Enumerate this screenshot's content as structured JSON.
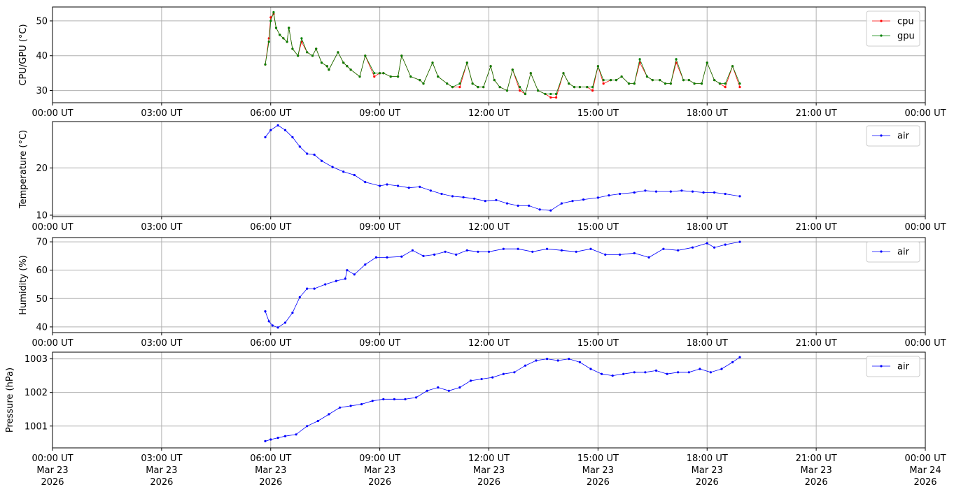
{
  "x_ticks": {
    "times": [
      "00:00 UT",
      "03:00 UT",
      "06:00 UT",
      "09:00 UT",
      "12:00 UT",
      "15:00 UT",
      "18:00 UT",
      "21:00 UT",
      "00:00 UT"
    ],
    "dates": [
      "Mar 23",
      "Mar 23",
      "Mar 23",
      "Mar 23",
      "Mar 23",
      "Mar 23",
      "Mar 23",
      "Mar 23",
      "Mar 24"
    ],
    "years": [
      "2026",
      "2026",
      "2026",
      "2026",
      "2026",
      "2026",
      "2026",
      "2026",
      "2026"
    ]
  },
  "chart_data": [
    {
      "type": "line",
      "ylabel": "CPU/GPU (°C)",
      "xlim_hours": [
        0,
        24
      ],
      "ylim": [
        26.5,
        54
      ],
      "yticks": [
        30,
        40,
        50
      ],
      "grid": true,
      "legend": "top-right",
      "colors": {
        "cpu": "#ff0000",
        "gpu": "#008000"
      },
      "series": [
        {
          "name": "cpu",
          "x_hours": [
            5.85,
            5.95,
            6.0,
            6.08,
            6.15,
            6.25,
            6.35,
            6.45,
            6.5,
            6.6,
            6.75,
            6.85,
            7.0,
            7.15,
            7.25,
            7.4,
            7.55,
            7.6,
            7.85,
            8.0,
            8.1,
            8.2,
            8.45,
            8.6,
            8.85,
            9.0,
            9.1,
            9.3,
            9.5,
            9.6,
            9.85,
            10.1,
            10.2,
            10.45,
            10.6,
            10.85,
            11.0,
            11.2,
            11.4,
            11.55,
            11.7,
            11.85,
            12.05,
            12.15,
            12.3,
            12.5,
            12.65,
            12.85,
            13.0,
            13.15,
            13.35,
            13.55,
            13.7,
            13.85,
            14.05,
            14.2,
            14.35,
            14.5,
            14.7,
            14.85,
            15.0,
            15.15,
            15.35,
            15.5,
            15.65,
            15.85,
            16.0,
            16.15,
            16.35,
            16.5,
            16.7,
            16.85,
            17.0,
            17.15,
            17.35,
            17.5,
            17.65,
            17.85,
            18.0,
            18.2,
            18.35,
            18.5,
            18.7,
            18.9
          ],
          "y": [
            37.5,
            45,
            51,
            52,
            48,
            46,
            45,
            44,
            48,
            42,
            40,
            44,
            41,
            40,
            42,
            38,
            37,
            36,
            41,
            38,
            37,
            36,
            34,
            40,
            34,
            35,
            35,
            34,
            34,
            40,
            34,
            33,
            32,
            38,
            34,
            32,
            31,
            31,
            38,
            32,
            31,
            31,
            37,
            33,
            31,
            30,
            36,
            30,
            29,
            35,
            30,
            29,
            28,
            28,
            35,
            32,
            31,
            31,
            31,
            30,
            37,
            32,
            33,
            33,
            34,
            32,
            32,
            38,
            34,
            33,
            33,
            32,
            32,
            38,
            33,
            33,
            32,
            32,
            38,
            33,
            32,
            31,
            37,
            31
          ]
        },
        {
          "name": "gpu",
          "x_hours": [
            5.85,
            5.95,
            6.0,
            6.08,
            6.15,
            6.25,
            6.35,
            6.45,
            6.5,
            6.6,
            6.75,
            6.85,
            7.0,
            7.15,
            7.25,
            7.4,
            7.55,
            7.6,
            7.85,
            8.0,
            8.1,
            8.2,
            8.45,
            8.6,
            8.85,
            9.0,
            9.1,
            9.3,
            9.5,
            9.6,
            9.85,
            10.1,
            10.2,
            10.45,
            10.6,
            10.85,
            11.0,
            11.2,
            11.4,
            11.55,
            11.7,
            11.85,
            12.05,
            12.15,
            12.3,
            12.5,
            12.65,
            12.85,
            13.0,
            13.15,
            13.35,
            13.55,
            13.7,
            13.85,
            14.05,
            14.2,
            14.35,
            14.5,
            14.7,
            14.85,
            15.0,
            15.15,
            15.35,
            15.5,
            15.65,
            15.85,
            16.0,
            16.15,
            16.35,
            16.5,
            16.7,
            16.85,
            17.0,
            17.15,
            17.35,
            17.5,
            17.65,
            17.85,
            18.0,
            18.2,
            18.35,
            18.5,
            18.7,
            18.9
          ],
          "y": [
            37.5,
            44,
            50,
            52.5,
            48,
            46,
            45,
            44,
            48,
            42,
            40,
            45,
            41,
            40,
            42,
            38,
            37,
            36,
            41,
            38,
            37,
            36,
            34,
            40,
            35,
            35,
            35,
            34,
            34,
            40,
            34,
            33,
            32,
            38,
            34,
            32,
            31,
            32,
            38,
            32,
            31,
            31,
            37,
            33,
            31,
            30,
            36,
            31,
            29,
            35,
            30,
            29,
            29,
            29,
            35,
            32,
            31,
            31,
            31,
            31,
            37,
            33,
            33,
            33,
            34,
            32,
            32,
            39,
            34,
            33,
            33,
            32,
            32,
            39,
            33,
            33,
            32,
            32,
            38,
            33,
            32,
            32,
            37,
            32
          ]
        }
      ]
    },
    {
      "type": "line",
      "ylabel": "Temperature (°C)",
      "xlim_hours": [
        0,
        24
      ],
      "ylim": [
        9.7,
        29.8
      ],
      "yticks": [
        10,
        20
      ],
      "grid": true,
      "legend": "top-right",
      "colors": {
        "air": "#0000ff"
      },
      "series": [
        {
          "name": "air",
          "x_hours": [
            5.85,
            6.0,
            6.2,
            6.4,
            6.6,
            6.8,
            7.0,
            7.2,
            7.4,
            7.7,
            8.0,
            8.3,
            8.6,
            9.0,
            9.2,
            9.5,
            9.8,
            10.1,
            10.4,
            10.7,
            11.0,
            11.3,
            11.6,
            11.9,
            12.2,
            12.5,
            12.8,
            13.1,
            13.4,
            13.7,
            14.0,
            14.3,
            14.6,
            15.0,
            15.3,
            15.6,
            16.0,
            16.3,
            16.6,
            17.0,
            17.3,
            17.6,
            17.9,
            18.2,
            18.5,
            18.9
          ],
          "y": [
            26.5,
            28,
            29,
            28,
            26.5,
            24.5,
            23,
            22.8,
            21.5,
            20.2,
            19.2,
            18.5,
            17,
            16.2,
            16.5,
            16.2,
            15.8,
            16,
            15.2,
            14.5,
            14,
            13.8,
            13.5,
            13,
            13.2,
            12.5,
            12,
            12,
            11.2,
            11,
            12.5,
            13,
            13.3,
            13.7,
            14.2,
            14.5,
            14.8,
            15.2,
            15,
            15,
            15.2,
            15,
            14.8,
            14.8,
            14.5,
            14
          ]
        }
      ]
    },
    {
      "type": "line",
      "ylabel": "Humidity (%)",
      "xlim_hours": [
        0,
        24
      ],
      "ylim": [
        38,
        71.5
      ],
      "yticks": [
        40,
        50,
        60,
        70
      ],
      "grid": true,
      "legend": "top-right",
      "colors": {
        "air": "#0000ff"
      },
      "series": [
        {
          "name": "air",
          "x_hours": [
            5.85,
            5.95,
            6.05,
            6.2,
            6.4,
            6.6,
            6.8,
            7.0,
            7.2,
            7.5,
            7.8,
            8.05,
            8.1,
            8.3,
            8.6,
            8.9,
            9.2,
            9.6,
            9.9,
            10.2,
            10.5,
            10.8,
            11.1,
            11.4,
            11.7,
            12.0,
            12.4,
            12.8,
            13.2,
            13.6,
            14.0,
            14.4,
            14.8,
            15.2,
            15.6,
            16.0,
            16.4,
            16.8,
            17.2,
            17.6,
            18.0,
            18.2,
            18.5,
            18.9
          ],
          "y": [
            45.5,
            42,
            40.5,
            39.8,
            41.5,
            45,
            50.5,
            53.5,
            53.5,
            55,
            56.2,
            57,
            60,
            58.5,
            62,
            64.5,
            64.5,
            64.8,
            67,
            65,
            65.5,
            66.5,
            65.5,
            67,
            66.5,
            66.5,
            67.5,
            67.5,
            66.5,
            67.5,
            67,
            66.5,
            67.5,
            65.5,
            65.5,
            66,
            64.5,
            67.5,
            67,
            68,
            69.5,
            68,
            69,
            70
          ]
        }
      ]
    },
    {
      "type": "line",
      "ylabel": "Pressure (hPa)",
      "xlim_hours": [
        0,
        24
      ],
      "ylim": [
        1000.35,
        1003.2
      ],
      "yticks": [
        1001,
        1002,
        1003
      ],
      "grid": true,
      "legend": "top-right",
      "colors": {
        "air": "#0000ff"
      },
      "series": [
        {
          "name": "air",
          "x_hours": [
            5.85,
            6.0,
            6.2,
            6.4,
            6.7,
            7.0,
            7.3,
            7.6,
            7.9,
            8.2,
            8.5,
            8.8,
            9.1,
            9.4,
            9.7,
            10.0,
            10.3,
            10.6,
            10.9,
            11.2,
            11.5,
            11.8,
            12.1,
            12.4,
            12.7,
            13.0,
            13.3,
            13.6,
            13.9,
            14.2,
            14.5,
            14.8,
            15.1,
            15.4,
            15.7,
            16.0,
            16.3,
            16.6,
            16.9,
            17.2,
            17.5,
            17.8,
            18.1,
            18.4,
            18.7,
            18.9
          ],
          "y": [
            1000.55,
            1000.6,
            1000.65,
            1000.7,
            1000.75,
            1001.0,
            1001.15,
            1001.35,
            1001.55,
            1001.6,
            1001.65,
            1001.75,
            1001.8,
            1001.8,
            1001.8,
            1001.85,
            1002.05,
            1002.15,
            1002.05,
            1002.15,
            1002.35,
            1002.4,
            1002.45,
            1002.55,
            1002.6,
            1002.8,
            1002.95,
            1003.0,
            1002.95,
            1003.0,
            1002.9,
            1002.7,
            1002.55,
            1002.5,
            1002.55,
            1002.6,
            1002.6,
            1002.65,
            1002.55,
            1002.6,
            1002.6,
            1002.7,
            1002.6,
            1002.7,
            1002.9,
            1003.05
          ]
        }
      ]
    }
  ]
}
